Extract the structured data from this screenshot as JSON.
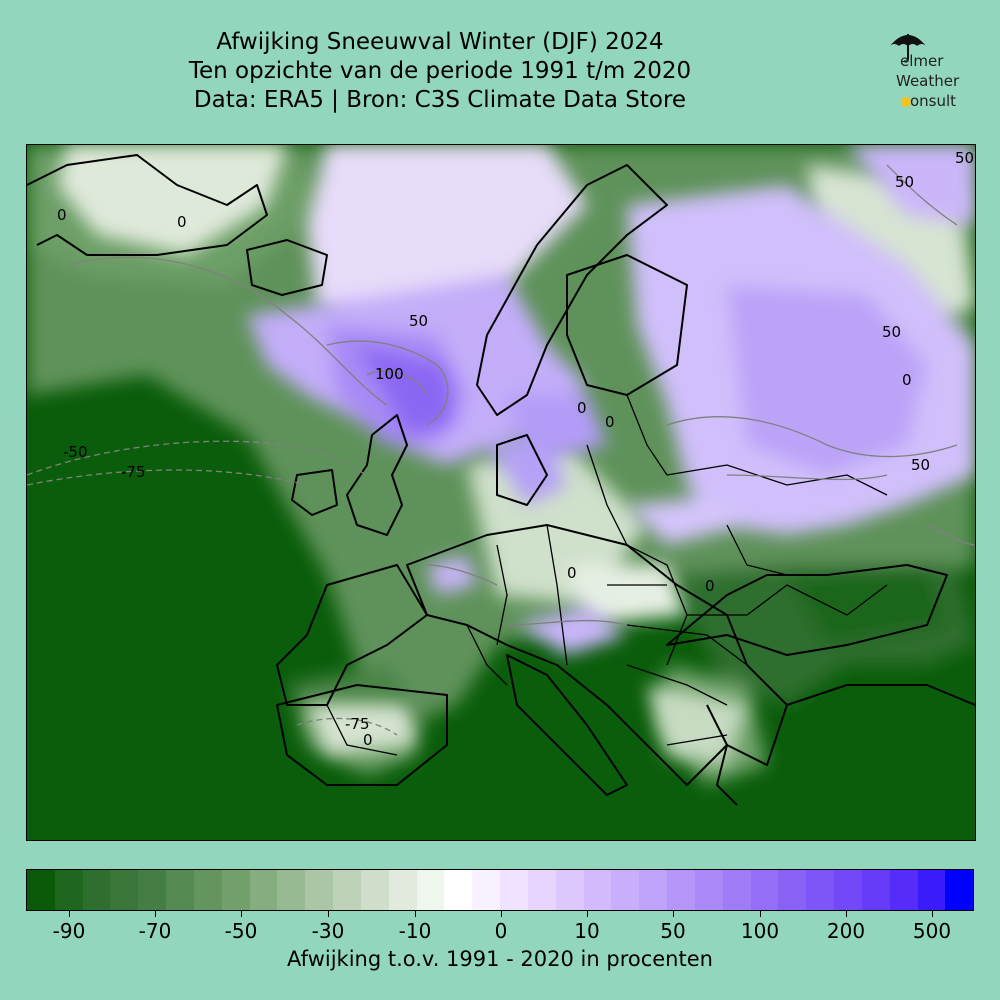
{
  "title": {
    "line1": "Afwijking Sneeuwval Winter (DJF) 2024",
    "line2": "Ten opzichte van de periode 1991 t/m 2020",
    "line3": "Data: ERA5 | Bron: C3S Climate Data Store"
  },
  "logo": {
    "line1": "elmer",
    "line2": "Weather",
    "line3": "onsult",
    "icon": "umbrella-icon",
    "sun_icon": "sun-icon"
  },
  "map": {
    "contour_labels": [
      "0",
      "0",
      "0",
      "0",
      "0",
      "0",
      "0",
      "0",
      "50",
      "50",
      "50",
      "50",
      "50",
      "100",
      "-50",
      "-75",
      "-75"
    ],
    "colors": {
      "deficit": "#0a5d0a",
      "neutral": "#ffffff",
      "surplus": "#b7a1f2",
      "border": "#000000"
    }
  },
  "colorbar": {
    "ticks": [
      "-90",
      "-70",
      "-50",
      "-30",
      "-10",
      "0",
      "10",
      "50",
      "100",
      "200",
      "500"
    ],
    "label": "Afwijking t.o.v. 1991 - 2020 in procenten",
    "colors": [
      "#0a5a0a",
      "#1f661f",
      "#2e6e2e",
      "#3a763a",
      "#457e44",
      "#548a52",
      "#64955f",
      "#74a06e",
      "#86ad80",
      "#98ba92",
      "#aac6a5",
      "#bdd2b8",
      "#cfdecb",
      "#e1eadd",
      "#eff6ee",
      "#ffffff",
      "#f8f1ff",
      "#efe3ff",
      "#e6d6ff",
      "#ddc8fd",
      "#d3bafc",
      "#c9aefb",
      "#bfa2f9",
      "#b595f8",
      "#aa88f7",
      "#a07bf6",
      "#946ef6",
      "#8a61f5",
      "#7e55f6",
      "#7348f6",
      "#653bf7",
      "#552cf8",
      "#3a1bfa",
      "#0000ff"
    ]
  }
}
